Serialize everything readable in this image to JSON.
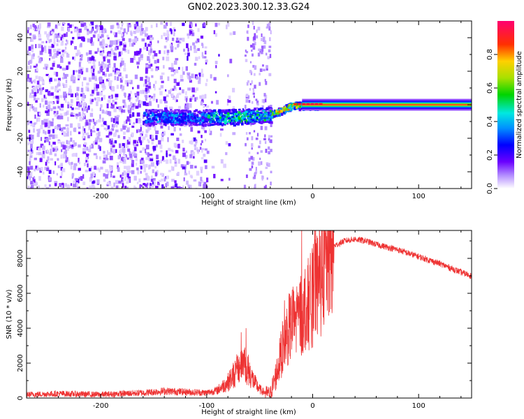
{
  "title": "GN02.2023.300.12.33.G24",
  "chart_data": [
    {
      "type": "heatmap",
      "xlabel": "Height of straight line (km)",
      "ylabel": "Frequency (Hz)",
      "xlim": [
        -270,
        150
      ],
      "ylim": [
        -50,
        50
      ],
      "xticks": [
        -200,
        -100,
        0,
        100
      ],
      "yticks": [
        -40,
        -20,
        0,
        20,
        40
      ],
      "colorbar": {
        "label": "Normalized spectral amplitude",
        "range": [
          0.0,
          1.0
        ],
        "ticks": [
          0.0,
          0.2,
          0.4,
          0.6,
          0.8
        ]
      },
      "features": [
        {
          "region": "x < -100 km",
          "content": "broad low-amplitude noise (purple) spanning full frequency range"
        },
        {
          "region": "-150 to 0 km",
          "content": "strong signal near 0 Hz, drifting from about -5 Hz up to 0 Hz"
        },
        {
          "region": "x > 0 km",
          "content": "narrow peak-amplitude line at 0 Hz"
        }
      ]
    },
    {
      "type": "line",
      "xlabel": "Height of straight line (km)",
      "ylabel": "SNR (10 * v/v)",
      "xlim": [
        -270,
        150
      ],
      "ylim": [
        0,
        9600
      ],
      "xticks": [
        -200,
        -100,
        0,
        100
      ],
      "yticks": [
        0,
        2000,
        4000,
        6000,
        8000
      ],
      "color": "#ee3333",
      "series": [
        {
          "x": [
            -270,
            -240,
            -200,
            -160,
            -140,
            -120,
            -100,
            -90,
            -80,
            -70,
            -65,
            -60,
            -55,
            -50,
            -45,
            -40,
            -35,
            -30,
            -25,
            -20,
            -15,
            -10,
            -5,
            0,
            5,
            10,
            15,
            20,
            30,
            40,
            50,
            60,
            80,
            100,
            120,
            140,
            150
          ],
          "values": [
            200,
            250,
            200,
            300,
            400,
            350,
            300,
            450,
            900,
            1700,
            2200,
            1500,
            900,
            500,
            300,
            250,
            1200,
            2500,
            3600,
            4200,
            4600,
            4900,
            5300,
            5800,
            6500,
            7300,
            8100,
            8700,
            9000,
            9100,
            9000,
            8800,
            8500,
            8100,
            7700,
            7200,
            7000
          ]
        }
      ]
    }
  ]
}
